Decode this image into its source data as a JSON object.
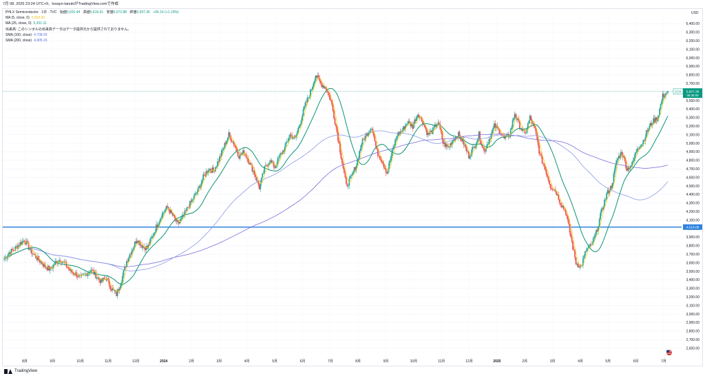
{
  "topbar": {
    "text": "7月 08, 2025 23:24 UTC+9、tosayo-tanukiがTradingView.comで作成"
  },
  "legend": {
    "title_prefix": "PHLX Semiconductor · 1日 · TVC",
    "o_label": "始値",
    "o": "5,591.44",
    "h_label": "高値",
    "h": "5,616.61",
    "l_label": "安値",
    "l": "5,572.88",
    "c_label": "終値",
    "c": "5,607.36",
    "chg": "+66.16 (+1.19%)",
    "ma5_label": "MA (5, close, 0)",
    "ma5": "5,593.90",
    "ma25_label": "MA (25, close, 0)",
    "ma25": "5,301.31",
    "vol_label": "出来高: このシンボルの出来高データはデータ提供元から提供されておりません。",
    "sma100_label": "SMA (100, close)",
    "sma100": "4,708.93",
    "sma200_label": "SMA (200, close)",
    "sma200": "4,905.15"
  },
  "colors": {
    "up": "#26a69a",
    "down": "#ef5350",
    "ma5": "#f5d21e",
    "ma25": "#1e9b80",
    "sma100": "#7b6cdb",
    "sma200": "#8a98e6",
    "hline": "#2f83e0",
    "price": "#089981"
  },
  "footer": {
    "brand": "TradingView",
    "flag_icon": "us-flag-icon"
  },
  "chart_data": {
    "type": "candlestick",
    "currency": "USD",
    "ylim": [
      2500,
      6500
    ],
    "y_ticks": [
      2600,
      2700,
      2800,
      2900,
      3000,
      3100,
      3200,
      3300,
      3400,
      3500,
      3600,
      3700,
      3800,
      3900,
      4000,
      4100,
      4200,
      4300,
      4400,
      4500,
      4600,
      4700,
      4800,
      4900,
      5000,
      5100,
      5200,
      5300,
      5400,
      5500,
      5600,
      5700,
      5800,
      5900,
      6000,
      6100,
      6200,
      6300,
      6400
    ],
    "x_labels": [
      "8月",
      "9月",
      "10月",
      "11月",
      "12月",
      "2024",
      "2月",
      "3月",
      "4月",
      "5月",
      "6月",
      "7月",
      "8月",
      "9月",
      "10月",
      "11月",
      "12月",
      "2025",
      "2月",
      "3月",
      "4月",
      "5月",
      "6月",
      "7月"
    ],
    "horizontal_line": {
      "value": 4018.08,
      "label": "4,018.08"
    },
    "last_price": {
      "value": 5607.36,
      "label": "5,607.36",
      "countdown": "06:35:08",
      "symbol": "SOX"
    },
    "weekly_closes": [
      3650,
      3720,
      3760,
      3820,
      3870,
      3760,
      3680,
      3620,
      3560,
      3520,
      3600,
      3640,
      3580,
      3500,
      3470,
      3420,
      3470,
      3520,
      3450,
      3380,
      3420,
      3300,
      3230,
      3400,
      3620,
      3750,
      3880,
      3800,
      3770,
      3900,
      4050,
      4180,
      4250,
      4150,
      4050,
      4130,
      4250,
      4350,
      4450,
      4600,
      4700,
      4680,
      4800,
      4950,
      5100,
      5000,
      4850,
      4900,
      4780,
      4650,
      4480,
      4700,
      4800,
      4720,
      4850,
      4950,
      5100,
      5050,
      5250,
      5450,
      5600,
      5800,
      5700,
      5650,
      5500,
      5200,
      4850,
      4500,
      4600,
      4750,
      5000,
      5100,
      5200,
      4900,
      4800,
      4650,
      4900,
      5100,
      5150,
      5250,
      5200,
      5350,
      5250,
      5100,
      5150,
      5250,
      5000,
      4950,
      5050,
      5100,
      5000,
      4850,
      4950,
      5100,
      4900,
      5050,
      5200,
      5150,
      5050,
      5100,
      5350,
      5200,
      5100,
      5300,
      5150,
      4850,
      4700,
      4500,
      4450,
      4300,
      4200,
      3900,
      3600,
      3550,
      3750,
      3800,
      3950,
      4200,
      4400,
      4500,
      4800,
      4900,
      4700,
      4750,
      4950,
      5000,
      5150,
      5250,
      5300,
      5550,
      5607.36
    ]
  }
}
